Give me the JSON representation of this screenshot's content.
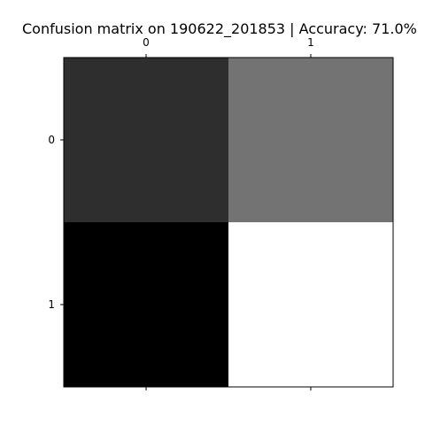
{
  "chart_data": {
    "type": "heatmap",
    "title": "Confusion matrix on 190622_201853 | Accuracy: 71.0%",
    "x_labels": [
      "0",
      "1"
    ],
    "y_labels": [
      "0",
      "1"
    ],
    "x_ticks_position": "top-and-bottom",
    "x_tick_labels_position": "top",
    "y_ticks_position": "left",
    "colormap": "gray",
    "grid": false,
    "matrix": [
      [
        0.18,
        0.45
      ],
      [
        0.0,
        1.0
      ]
    ],
    "value_range": [
      0,
      1
    ]
  }
}
